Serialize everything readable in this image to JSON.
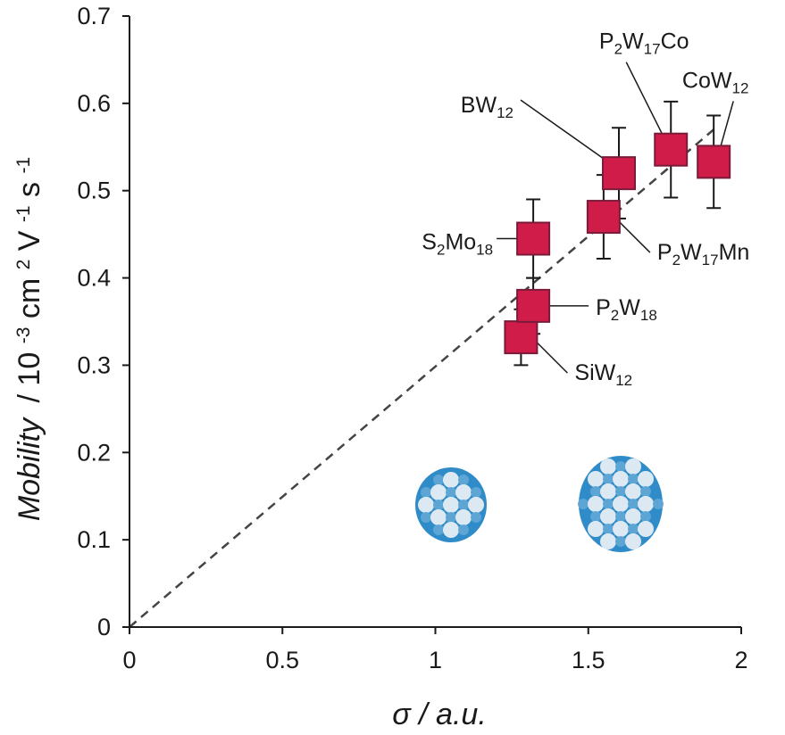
{
  "chart_data": {
    "type": "scatter",
    "title": "",
    "xlabel": "σ / a.u.",
    "ylabel": {
      "italic": "Mobility",
      "rest": "/ 10",
      "exp1": "-3",
      "cm": " cm",
      "exp2": "2",
      "v": " V",
      "exp3": "-1",
      "s": " s",
      "exp4": "-1"
    },
    "xlim": [
      0,
      2
    ],
    "ylim": [
      0,
      0.7
    ],
    "x_ticks": [
      "0",
      "0.5",
      "1",
      "1.5",
      "2"
    ],
    "y_ticks": [
      "0",
      "0.1",
      "0.2",
      "0.3",
      "0.4",
      "0.5",
      "0.6",
      "0.7"
    ],
    "x_tick_values": [
      0,
      0.5,
      1,
      1.5,
      2
    ],
    "y_tick_values": [
      0,
      0.1,
      0.2,
      0.3,
      0.4,
      0.5,
      0.6,
      0.7
    ],
    "grid": false,
    "marker_color": "#d01c48",
    "marker_edge_color": "#7a1b3a",
    "points": [
      {
        "label": [
          [
            "SiW",
            ""
          ],
          [
            "12",
            "sub"
          ]
        ],
        "x": 1.28,
        "y": 0.332,
        "err": 0.032,
        "label_side": "right-below"
      },
      {
        "label": [
          [
            "P",
            ""
          ],
          [
            "2",
            "sub"
          ],
          [
            "W",
            ""
          ],
          [
            "18",
            "sub"
          ]
        ],
        "x": 1.32,
        "y": 0.368,
        "err": 0.032,
        "label_side": "right"
      },
      {
        "label": [
          [
            "S",
            ""
          ],
          [
            "2",
            "sub"
          ],
          [
            "Mo",
            ""
          ],
          [
            "18",
            "sub"
          ]
        ],
        "x": 1.32,
        "y": 0.445,
        "err": 0.045,
        "label_side": "left"
      },
      {
        "label": [
          [
            "P",
            ""
          ],
          [
            "2",
            "sub"
          ],
          [
            "W",
            ""
          ],
          [
            "17",
            "sub"
          ],
          [
            "Mn",
            ""
          ]
        ],
        "x": 1.55,
        "y": 0.47,
        "err": 0.048,
        "label_side": "right-below"
      },
      {
        "label": [
          [
            "BW",
            ""
          ],
          [
            "12",
            "sub"
          ]
        ],
        "x": 1.6,
        "y": 0.52,
        "err": 0.052,
        "label_side": "upper-left"
      },
      {
        "label": [
          [
            "P",
            ""
          ],
          [
            "2",
            "sub"
          ],
          [
            "W",
            ""
          ],
          [
            "17",
            "sub"
          ],
          [
            "Co",
            ""
          ]
        ],
        "x": 1.77,
        "y": 0.547,
        "err": 0.055,
        "label_side": "upper-left"
      },
      {
        "label": [
          [
            "CoW",
            ""
          ],
          [
            "12",
            "sub"
          ]
        ],
        "x": 1.91,
        "y": 0.533,
        "err": 0.053,
        "label_side": "upper"
      }
    ],
    "trend_line": {
      "style": "dashed",
      "from": [
        0,
        0
      ],
      "to": [
        1.91,
        0.57
      ]
    }
  }
}
